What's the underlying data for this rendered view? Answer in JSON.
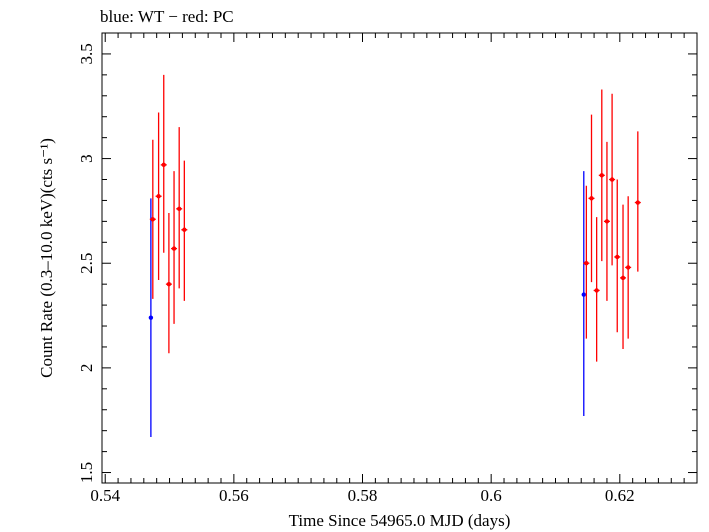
{
  "chart_data": {
    "type": "scatter",
    "title": "blue: WT − red: PC",
    "xlabel": "Time Since 54965.0 MJD (days)",
    "ylabel": "Count Rate (0.3–10.0 keV)(cts s⁻¹)",
    "xlim": [
      0.5395,
      0.632
    ],
    "ylim": [
      1.45,
      3.6
    ],
    "x_ticks": [
      0.54,
      0.56,
      0.58,
      0.6,
      0.62
    ],
    "x_tick_labels": [
      "0.54",
      "0.56",
      "0.58",
      "0.6",
      "0.62"
    ],
    "y_ticks": [
      1.5,
      2,
      2.5,
      3,
      3.5
    ],
    "y_tick_labels": [
      "1.5",
      "2",
      "2.5",
      "3",
      "3.5"
    ],
    "grid": false,
    "legend": "none",
    "series": [
      {
        "name": "WT",
        "color": "#0000ff",
        "points": [
          {
            "x": 0.5471,
            "y": 2.24,
            "ylo": 1.67,
            "yhi": 2.81
          },
          {
            "x": 0.6144,
            "y": 2.35,
            "ylo": 1.77,
            "yhi": 2.94
          }
        ]
      },
      {
        "name": "PC",
        "color": "#ff0000",
        "points": [
          {
            "x": 0.5474,
            "y": 2.71,
            "ylo": 2.33,
            "yhi": 3.09
          },
          {
            "x": 0.5483,
            "y": 2.82,
            "ylo": 2.42,
            "yhi": 3.22
          },
          {
            "x": 0.5491,
            "y": 2.97,
            "ylo": 2.55,
            "yhi": 3.4
          },
          {
            "x": 0.5499,
            "y": 2.4,
            "ylo": 2.07,
            "yhi": 2.74
          },
          {
            "x": 0.5507,
            "y": 2.57,
            "ylo": 2.21,
            "yhi": 2.94
          },
          {
            "x": 0.5515,
            "y": 2.76,
            "ylo": 2.38,
            "yhi": 3.15
          },
          {
            "x": 0.5523,
            "y": 2.66,
            "ylo": 2.32,
            "yhi": 2.99
          },
          {
            "x": 0.6148,
            "y": 2.5,
            "ylo": 2.14,
            "yhi": 2.87
          },
          {
            "x": 0.6156,
            "y": 2.81,
            "ylo": 2.41,
            "yhi": 3.21
          },
          {
            "x": 0.6164,
            "y": 2.37,
            "ylo": 2.03,
            "yhi": 2.72
          },
          {
            "x": 0.6172,
            "y": 2.92,
            "ylo": 2.51,
            "yhi": 3.33
          },
          {
            "x": 0.618,
            "y": 2.7,
            "ylo": 2.32,
            "yhi": 3.08
          },
          {
            "x": 0.6188,
            "y": 2.9,
            "ylo": 2.49,
            "yhi": 3.31
          },
          {
            "x": 0.6196,
            "y": 2.53,
            "ylo": 2.17,
            "yhi": 2.9
          },
          {
            "x": 0.6205,
            "y": 2.43,
            "ylo": 2.09,
            "yhi": 2.78
          },
          {
            "x": 0.6213,
            "y": 2.48,
            "ylo": 2.14,
            "yhi": 2.82
          },
          {
            "x": 0.6228,
            "y": 2.79,
            "ylo": 2.46,
            "yhi": 3.13
          }
        ]
      }
    ]
  }
}
